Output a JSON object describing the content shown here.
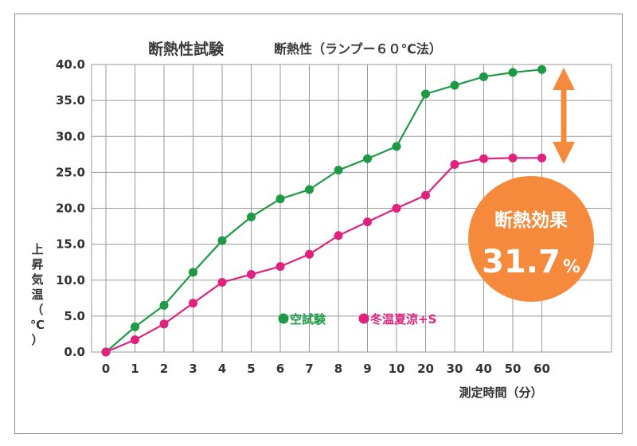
{
  "title": "断熱性試験",
  "subtitle": "断熱性（ランプー６０℃法）",
  "colors": {
    "series1": "#1e9a46",
    "series2": "#e0227e",
    "effect": "#f58a3c",
    "grid": "#9a9a9a",
    "text": "#333333"
  },
  "chart_data": {
    "type": "line",
    "title": "断熱性試験",
    "subtitle": "断熱性（ランプー６０℃法）",
    "xlabel": "測定時間（分）",
    "ylabel": "上昇気温（℃）",
    "ylim": [
      0,
      40
    ],
    "grid": true,
    "legend_position": "bottom-center",
    "categories": [
      "0",
      "1",
      "2",
      "3",
      "4",
      "5",
      "6",
      "7",
      "8",
      "9",
      "10",
      "20",
      "30",
      "40",
      "50",
      "60"
    ],
    "yticks": [
      "0.0",
      "5.0",
      "10.0",
      "15.0",
      "20.0",
      "25.0",
      "30.0",
      "35.0",
      "40.0"
    ],
    "series": [
      {
        "name": "空試験",
        "color": "#1e9a46",
        "values": [
          0.0,
          3.5,
          6.5,
          11.1,
          15.5,
          18.8,
          21.3,
          22.6,
          25.3,
          26.9,
          28.6,
          35.9,
          37.1,
          38.3,
          38.9,
          39.3
        ]
      },
      {
        "name": "冬温夏涼+S",
        "color": "#e0227e",
        "values": [
          0.0,
          1.7,
          3.9,
          6.8,
          9.7,
          10.8,
          11.9,
          13.6,
          16.2,
          18.1,
          20.0,
          21.8,
          26.1,
          26.9,
          27.0,
          27.0
        ]
      }
    ],
    "annotation": {
      "label": "断熱効果",
      "value": "31.7",
      "unit": "%"
    }
  }
}
